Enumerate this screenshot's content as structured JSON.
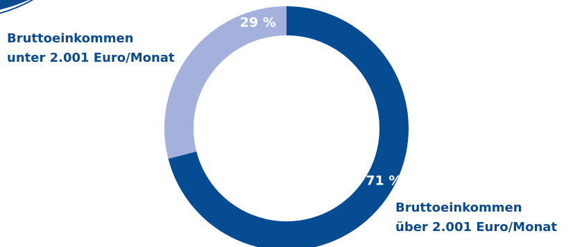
{
  "chart_data": {
    "type": "pie",
    "donut": true,
    "categories": [
      "Bruttoeinkommen über 2.001 Euro/Monat",
      "Bruttoeinkommen unter 2.001 Euro/Monat"
    ],
    "values": [
      71,
      29
    ],
    "value_labels": [
      "71 %",
      "29 %"
    ],
    "colors": [
      "#064c92",
      "#a4b1dc"
    ],
    "start_angle_deg": 0,
    "direction": "clockwise",
    "labels": {
      "high": {
        "line1": "Bruttoeinkommen",
        "line2": "über 2.001 Euro/Monat"
      },
      "low": {
        "line1": "Bruttoeinkommen",
        "line2": "unter 2.001 Euro/Monat"
      }
    },
    "legend": "none",
    "grid": false
  }
}
